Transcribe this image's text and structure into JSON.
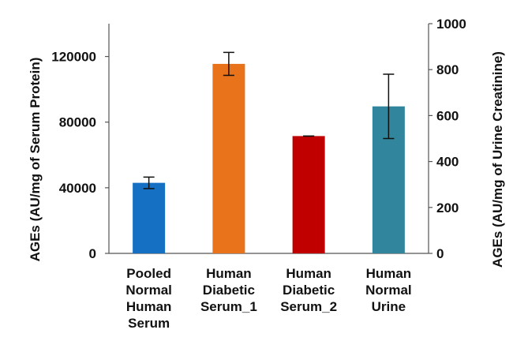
{
  "chart_data": {
    "type": "bar",
    "categories": [
      [
        "Pooled",
        "Normal",
        "Human",
        "Serum"
      ],
      [
        "Human",
        "Diabetic",
        "Serum_1"
      ],
      [
        "Human",
        "Diabetic",
        "Serum_2"
      ],
      [
        "Human",
        "Normal",
        "Urine"
      ]
    ],
    "series": [
      {
        "axis": "left",
        "values": [
          43000,
          115500,
          71500,
          null
        ],
        "errors": [
          3500,
          7000,
          0,
          null
        ]
      },
      {
        "axis": "right",
        "values": [
          null,
          null,
          null,
          640
        ],
        "errors": [
          null,
          null,
          null,
          140
        ]
      }
    ],
    "bar_colors": [
      "#1570C4",
      "#E8731A",
      "#C00000",
      "#31859C"
    ],
    "ylabel": "AGEs (AU/mg of Serum Protein)",
    "ylim": [
      0,
      140000
    ],
    "yticks": [
      0,
      40000,
      80000,
      120000
    ],
    "y2label": "AGEs (AU/mg of Urine Creatinine)",
    "y2lim": [
      0,
      1000
    ],
    "y2ticks": [
      0,
      200,
      400,
      600,
      800,
      1000
    ],
    "grid": false,
    "legend": "none"
  }
}
